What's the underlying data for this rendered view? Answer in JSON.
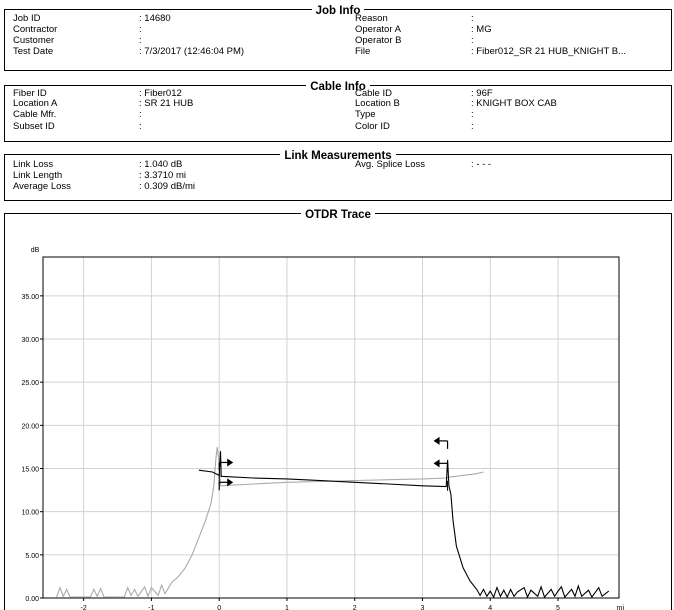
{
  "job_info": {
    "title": "Job Info",
    "left": [
      {
        "label": "Job ID",
        "value": "14680"
      },
      {
        "label": "Contractor",
        "value": ""
      },
      {
        "label": "Customer",
        "value": ""
      },
      {
        "label": "Test Date",
        "value": "7/3/2017 (12:46:04 PM)"
      }
    ],
    "right": [
      {
        "label": "Reason",
        "value": ""
      },
      {
        "label": "Operator A",
        "value": "MG"
      },
      {
        "label": "Operator B",
        "value": ""
      },
      {
        "label": "File",
        "value": "Fiber012_SR 21 HUB_KNIGHT B..."
      }
    ]
  },
  "cable_info": {
    "title": "Cable Info",
    "left": [
      {
        "label": "Fiber ID",
        "value": "Fiber012"
      },
      {
        "label": "Location A",
        "value": "SR 21 HUB"
      },
      {
        "label": "Cable Mfr.",
        "value": ""
      },
      {
        "label": "Subset ID",
        "value": ""
      }
    ],
    "right": [
      {
        "label": "Cable ID",
        "value": "96F"
      },
      {
        "label": "Location B",
        "value": "KNIGHT BOX CAB"
      },
      {
        "label": "Type",
        "value": ""
      },
      {
        "label": "Color ID",
        "value": ""
      }
    ]
  },
  "link_measurements": {
    "title": "Link Measurements",
    "left": [
      {
        "label": "Link Loss",
        "value": "1.040 dB"
      },
      {
        "label": "Link Length",
        "value": "3.3710 mi"
      },
      {
        "label": "Average Loss",
        "value": "0.309 dB/mi"
      }
    ],
    "right": [
      {
        "label": "Avg. Splice Loss",
        "value": "- - -"
      }
    ]
  },
  "otdr": {
    "title": "OTDR Trace",
    "chart_data": {
      "type": "line",
      "ylabel": "dB",
      "xlabel": "mi",
      "xlim": [
        -2.6,
        5.9
      ],
      "ylim": [
        0,
        39.5
      ],
      "x_ticks": [
        -2,
        -1,
        0,
        1,
        2,
        3,
        4,
        5
      ],
      "y_ticks": [
        0,
        5,
        10,
        15,
        20,
        25,
        30,
        35
      ],
      "y_tick_labels": [
        "0.00",
        "5.00",
        "10.00",
        "15.00",
        "20.00",
        "25.00",
        "30.00",
        "35.00"
      ],
      "grid": true,
      "colors": {
        "trace_a": "#000000",
        "trace_b": "#aaaaaa",
        "grid": "#d2d2d2"
      },
      "series": [
        {
          "color": "#000000",
          "points": [
            [
              -0.3,
              14.8
            ],
            [
              -0.1,
              14.6
            ],
            [
              0.0,
              14.2
            ],
            [
              0.02,
              17.0
            ],
            [
              0.03,
              14.1
            ],
            [
              0.5,
              13.9
            ],
            [
              1.0,
              13.8
            ],
            [
              1.5,
              13.6
            ],
            [
              2.0,
              13.4
            ],
            [
              2.5,
              13.2
            ],
            [
              3.0,
              13.0
            ],
            [
              3.35,
              12.9
            ],
            [
              3.37,
              16.0
            ],
            [
              3.39,
              13.0
            ],
            [
              3.42,
              12.0
            ],
            [
              3.45,
              9.0
            ],
            [
              3.5,
              6.0
            ],
            [
              3.6,
              3.5
            ],
            [
              3.7,
              2.0
            ],
            [
              3.8,
              1.0
            ],
            [
              3.85,
              0.3
            ],
            [
              3.9,
              1.0
            ],
            [
              3.95,
              0.2
            ],
            [
              4.0,
              0.8
            ],
            [
              4.05,
              0.1
            ],
            [
              4.1,
              1.2
            ],
            [
              4.15,
              0.2
            ],
            [
              4.2,
              0.9
            ],
            [
              4.25,
              0.1
            ],
            [
              4.3,
              1.0
            ],
            [
              4.35,
              0.2
            ],
            [
              4.4,
              0.7
            ],
            [
              4.5,
              1.2
            ],
            [
              4.55,
              0.1
            ],
            [
              4.6,
              0.9
            ],
            [
              4.7,
              0.2
            ],
            [
              4.75,
              1.3
            ],
            [
              4.8,
              0.1
            ],
            [
              4.9,
              1.0
            ],
            [
              4.95,
              0.2
            ],
            [
              5.0,
              0.8
            ],
            [
              5.05,
              1.3
            ],
            [
              5.1,
              0.1
            ],
            [
              5.2,
              1.0
            ],
            [
              5.25,
              0.2
            ],
            [
              5.3,
              1.4
            ],
            [
              5.35,
              0.2
            ],
            [
              5.45,
              0.9
            ],
            [
              5.5,
              0.1
            ],
            [
              5.6,
              1.2
            ],
            [
              5.65,
              0.2
            ],
            [
              5.75,
              0.8
            ]
          ]
        },
        {
          "color": "#aaaaaa",
          "points": [
            [
              -2.4,
              0.1
            ],
            [
              -2.35,
              1.2
            ],
            [
              -2.3,
              0.2
            ],
            [
              -2.25,
              1.0
            ],
            [
              -2.2,
              0.1
            ],
            [
              -1.9,
              0.1
            ],
            [
              -1.85,
              1.0
            ],
            [
              -1.8,
              0.2
            ],
            [
              -1.75,
              1.1
            ],
            [
              -1.7,
              0.1
            ],
            [
              -1.4,
              0.1
            ],
            [
              -1.35,
              1.2
            ],
            [
              -1.3,
              0.3
            ],
            [
              -1.25,
              1.0
            ],
            [
              -1.2,
              0.2
            ],
            [
              -1.1,
              1.3
            ],
            [
              -1.05,
              0.2
            ],
            [
              -1.0,
              1.2
            ],
            [
              -0.9,
              0.3
            ],
            [
              -0.85,
              1.5
            ],
            [
              -0.8,
              0.5
            ],
            [
              -0.7,
              1.8
            ],
            [
              -0.6,
              2.5
            ],
            [
              -0.5,
              3.5
            ],
            [
              -0.4,
              5.0
            ],
            [
              -0.3,
              7.0
            ],
            [
              -0.2,
              9.0
            ],
            [
              -0.12,
              11.0
            ],
            [
              -0.08,
              13.0
            ],
            [
              -0.05,
              16.0
            ],
            [
              -0.03,
              17.5
            ],
            [
              0.0,
              15.5
            ],
            [
              0.02,
              13.0
            ],
            [
              0.5,
              13.2
            ],
            [
              1.0,
              13.4
            ],
            [
              1.5,
              13.5
            ],
            [
              2.0,
              13.6
            ],
            [
              2.5,
              13.7
            ],
            [
              3.0,
              13.8
            ],
            [
              3.35,
              13.9
            ],
            [
              3.4,
              14.0
            ],
            [
              3.8,
              14.4
            ],
            [
              3.9,
              14.6
            ]
          ]
        }
      ],
      "event_markers": [
        {
          "x": 0,
          "y": 13.8
        },
        {
          "x": 3.37,
          "y": 13.0
        }
      ],
      "arrow_markers": [
        {
          "x": 0.0,
          "y": 15.7,
          "dir": "right"
        },
        {
          "x": 0.0,
          "y": 13.4,
          "dir": "right"
        },
        {
          "x": 3.37,
          "y": 18.2,
          "dir": "left"
        },
        {
          "x": 3.37,
          "y": 15.6,
          "dir": "left"
        }
      ]
    }
  }
}
